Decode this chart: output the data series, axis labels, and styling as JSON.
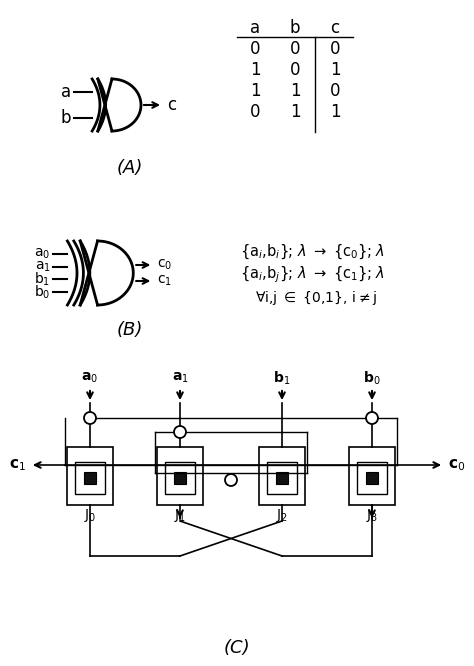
{
  "bg_color": "#ffffff",
  "title_A": "(A)",
  "title_B": "(B)",
  "title_C": "(C)",
  "truth_table": {
    "headers": [
      "a",
      "b",
      "c"
    ],
    "rows": [
      [
        0,
        0,
        0
      ],
      [
        1,
        0,
        1
      ],
      [
        1,
        1,
        0
      ],
      [
        0,
        1,
        1
      ]
    ]
  }
}
